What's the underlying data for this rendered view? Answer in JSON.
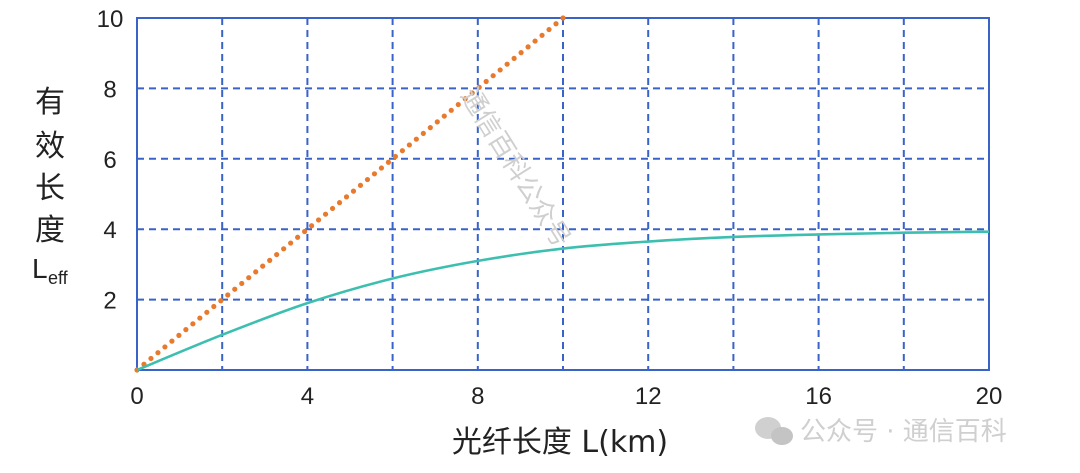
{
  "chart_data": {
    "type": "line",
    "xlabel": "光纤长度 L(km)",
    "ylabel": {
      "chars": [
        "有",
        "效",
        "长",
        "度"
      ],
      "symbol": "L",
      "subscript": "eff"
    },
    "xlim": [
      0,
      20
    ],
    "ylim": [
      0,
      10
    ],
    "x_ticks": [
      0,
      4,
      8,
      12,
      16,
      20
    ],
    "y_ticks": [
      2,
      4,
      6,
      8,
      10
    ],
    "grid": true,
    "series": [
      {
        "style": "dotted",
        "color": "#E87A2E",
        "x": [
          0,
          2,
          4,
          6,
          8,
          10
        ],
        "y": [
          0,
          2,
          4,
          6,
          8,
          10
        ]
      },
      {
        "style": "solid",
        "color": "#3DBFB0",
        "x": [
          0,
          2,
          4,
          6,
          8,
          10,
          12,
          14,
          16,
          18,
          20
        ],
        "y": [
          0,
          1.0,
          1.9,
          2.6,
          3.1,
          3.45,
          3.65,
          3.78,
          3.85,
          3.9,
          3.93
        ]
      }
    ]
  },
  "watermarks": {
    "diagonal": "通信百科公众号",
    "corner": "公众号 · 通信百科"
  },
  "colors": {
    "grid": "#3A63C8",
    "frame": "#3A63C8"
  }
}
